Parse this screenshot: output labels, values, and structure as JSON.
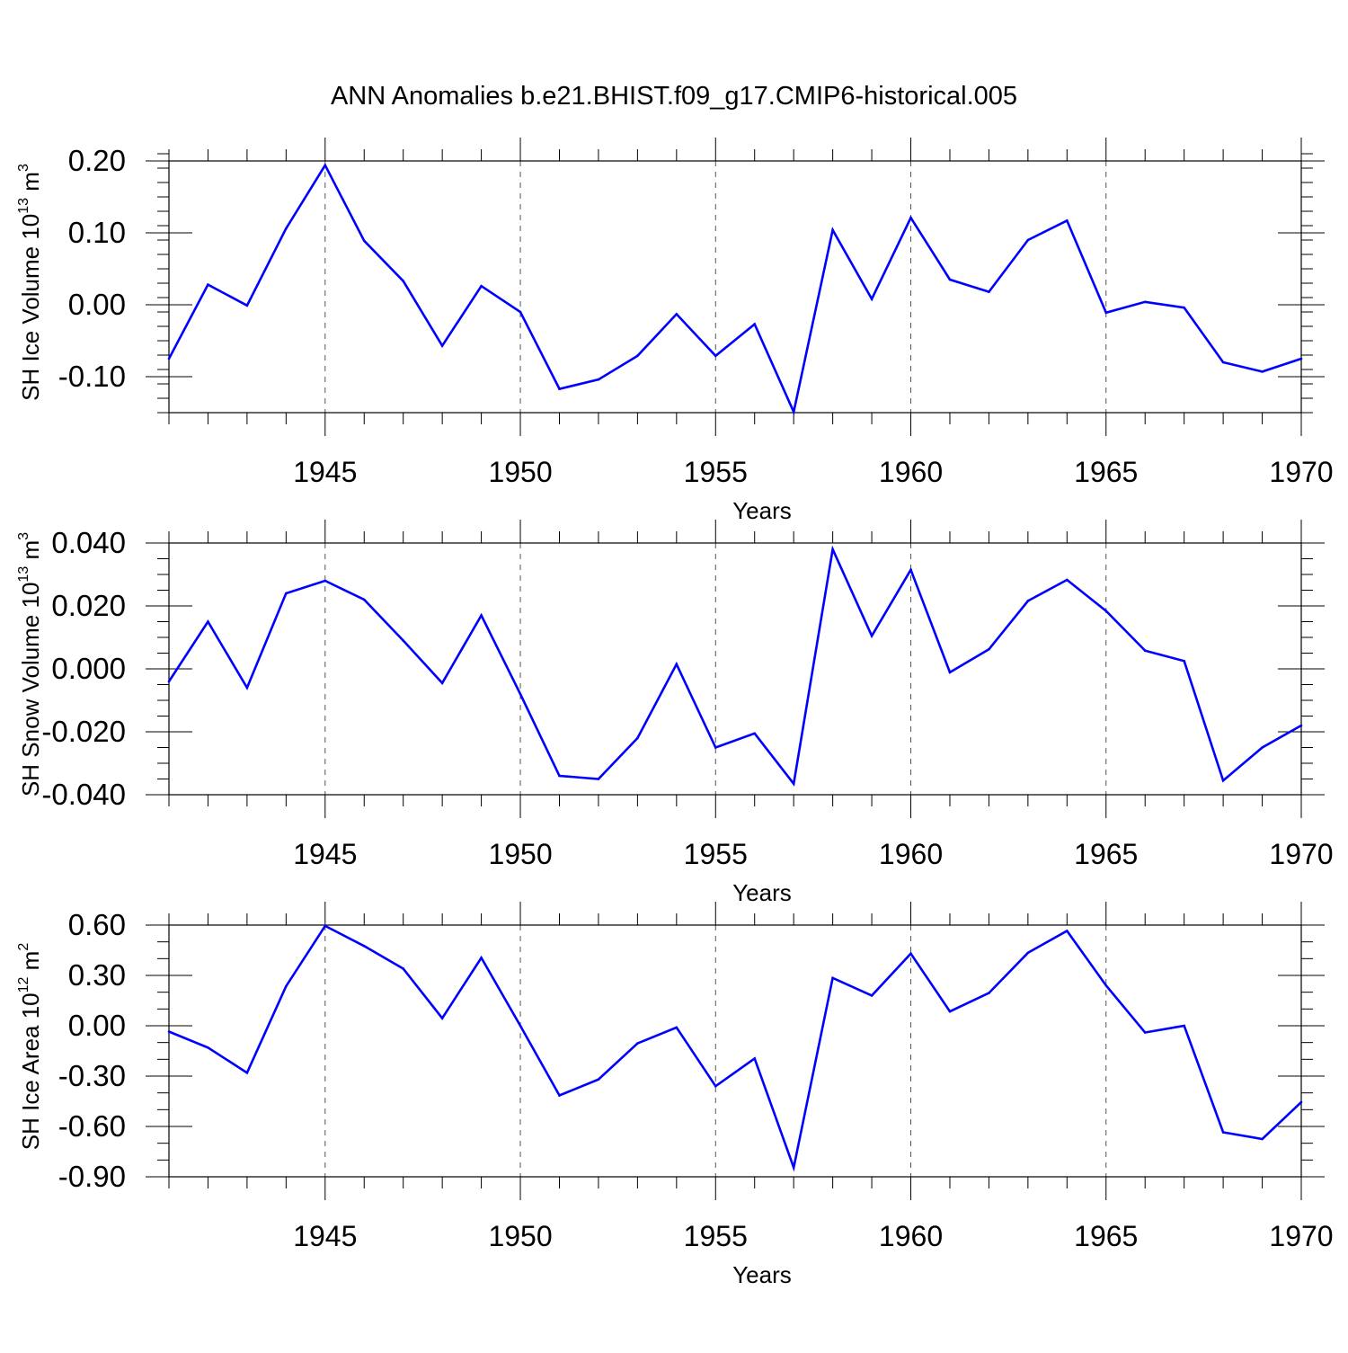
{
  "figure": {
    "title": "ANN Anomalies b.e21.BHIST.f09_g17.CMIP6-historical.005",
    "line_color": "#0000ff",
    "axis_color": "#000000",
    "grid_color": "#555555"
  },
  "chart_data": [
    {
      "type": "line",
      "ylabel": "SH Ice Volume 10",
      "ylabel_exponent": "13",
      "ylabel_unit": " m",
      "ylabel_unit_exponent": "3",
      "xlabel": "Years",
      "xlim": [
        1941,
        1970
      ],
      "ylim": [
        -0.15,
        0.2
      ],
      "yticks": [
        0.2,
        0.1,
        0.0,
        -0.1
      ],
      "ytick_labels": [
        "0.20",
        "0.10",
        "0.00",
        "-0.10"
      ],
      "ytick_minor_step": 0.02,
      "xticks": [
        1945,
        1950,
        1955,
        1960,
        1965,
        1970
      ],
      "xtick_labels": [
        "1945",
        "1950",
        "1955",
        "1960",
        "1965",
        "1970"
      ],
      "grid": "vertical dashed at major x ticks",
      "series": [
        {
          "x": [
            1941,
            1942,
            1943,
            1944,
            1945,
            1946,
            1947,
            1948,
            1949,
            1950,
            1951,
            1952,
            1953,
            1954,
            1955,
            1956,
            1957,
            1958,
            1959,
            1960,
            1961,
            1962,
            1963,
            1964,
            1965,
            1966,
            1967,
            1968,
            1969,
            1970
          ],
          "values": [
            -0.075,
            0.028,
            -0.001,
            0.106,
            0.194,
            0.089,
            0.033,
            -0.057,
            0.026,
            -0.01,
            -0.117,
            -0.104,
            -0.071,
            -0.013,
            -0.071,
            -0.027,
            -0.149,
            0.104,
            0.008,
            0.121,
            0.035,
            0.018,
            0.09,
            0.117,
            -0.011,
            0.004,
            -0.004,
            -0.08,
            -0.093,
            -0.075
          ]
        }
      ]
    },
    {
      "type": "line",
      "ylabel": "SH Snow Volume 10",
      "ylabel_exponent": "13",
      "ylabel_unit": " m",
      "ylabel_unit_exponent": "3",
      "xlabel": "Years",
      "xlim": [
        1941,
        1970
      ],
      "ylim": [
        -0.04,
        0.04
      ],
      "yticks": [
        0.04,
        0.02,
        0.0,
        -0.02,
        -0.04
      ],
      "ytick_labels": [
        "0.040",
        "0.020",
        "0.000",
        "-0.020",
        "-0.040"
      ],
      "ytick_minor_step": 0.005,
      "xticks": [
        1945,
        1950,
        1955,
        1960,
        1965,
        1970
      ],
      "xtick_labels": [
        "1945",
        "1950",
        "1955",
        "1960",
        "1965",
        "1970"
      ],
      "grid": "vertical dashed at major x ticks",
      "series": [
        {
          "x": [
            1941,
            1942,
            1943,
            1944,
            1945,
            1946,
            1947,
            1948,
            1949,
            1950,
            1951,
            1952,
            1953,
            1954,
            1955,
            1956,
            1957,
            1958,
            1959,
            1960,
            1961,
            1962,
            1963,
            1964,
            1965,
            1966,
            1967,
            1968,
            1969,
            1970
          ],
          "values": [
            -0.004,
            0.015,
            -0.006,
            0.024,
            0.028,
            0.022,
            0.009,
            -0.0045,
            0.017,
            -0.008,
            -0.034,
            -0.035,
            -0.022,
            0.0015,
            -0.025,
            -0.0205,
            -0.0365,
            0.038,
            0.0105,
            0.0315,
            -0.0011,
            0.0062,
            0.0216,
            0.0283,
            0.0184,
            0.0058,
            0.0025,
            -0.0355,
            -0.025,
            -0.018
          ]
        }
      ]
    },
    {
      "type": "line",
      "ylabel": "SH Ice Area 10",
      "ylabel_exponent": "12",
      "ylabel_unit": " m",
      "ylabel_unit_exponent": "2",
      "xlabel": "Years",
      "xlim": [
        1941,
        1970
      ],
      "ylim": [
        -0.9,
        0.6
      ],
      "yticks": [
        0.6,
        0.3,
        0.0,
        -0.3,
        -0.6,
        -0.9
      ],
      "ytick_labels": [
        "0.60",
        "0.30",
        "0.00",
        "-0.30",
        "-0.60",
        "-0.90"
      ],
      "ytick_minor_step": 0.1,
      "xticks": [
        1945,
        1950,
        1955,
        1960,
        1965,
        1970
      ],
      "xtick_labels": [
        "1945",
        "1950",
        "1955",
        "1960",
        "1965",
        "1970"
      ],
      "grid": "vertical dashed at major x ticks",
      "series": [
        {
          "x": [
            1941,
            1942,
            1943,
            1944,
            1945,
            1946,
            1947,
            1948,
            1949,
            1950,
            1951,
            1952,
            1953,
            1954,
            1955,
            1956,
            1957,
            1958,
            1959,
            1960,
            1961,
            1962,
            1963,
            1964,
            1965,
            1966,
            1967,
            1968,
            1969,
            1970
          ],
          "values": [
            -0.035,
            -0.13,
            -0.28,
            0.235,
            0.595,
            0.475,
            0.34,
            0.045,
            0.405,
            0.0,
            -0.415,
            -0.32,
            -0.105,
            -0.01,
            -0.36,
            -0.195,
            -0.845,
            0.285,
            0.18,
            0.43,
            0.085,
            0.195,
            0.435,
            0.565,
            0.24,
            -0.04,
            0.0,
            -0.635,
            -0.675,
            -0.455
          ]
        }
      ]
    }
  ]
}
